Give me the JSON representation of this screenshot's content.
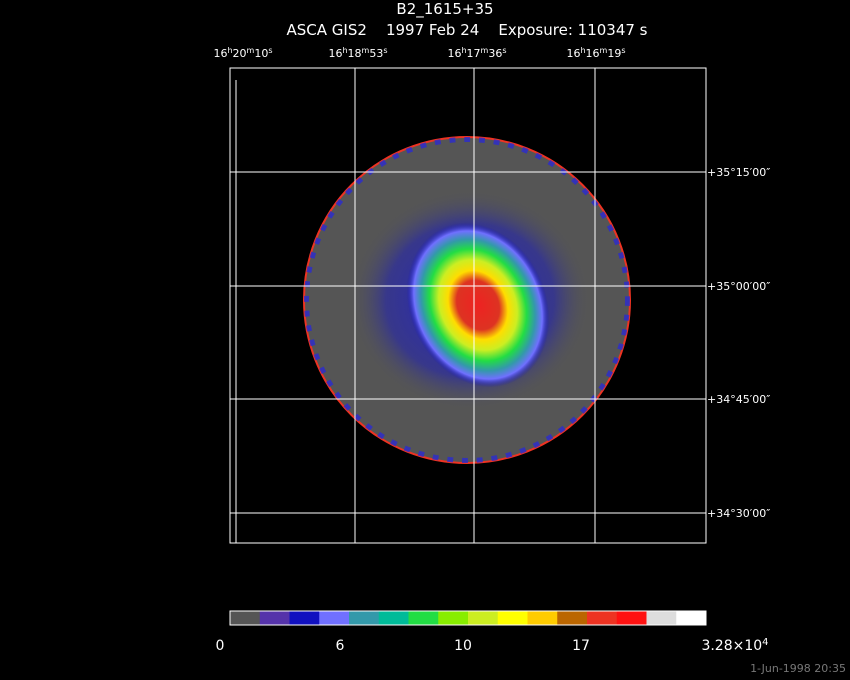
{
  "header": {
    "title": "B2_1615+35",
    "subtitle": "ASCA GIS2    1997 Feb 24    Exposure: 110347 s"
  },
  "ra_labels": [
    "16h20m10s",
    "16h18m53s",
    "16h17m36s",
    "16h16m19s"
  ],
  "dec_labels": [
    "+35°15′00″",
    "+35°00′00″",
    "+34°45′00″",
    "+34°30′00″"
  ],
  "colorbar": {
    "colors": [
      "#555555",
      "#5533aa",
      "#1010c0",
      "#7070ff",
      "#3399aa",
      "#00bb99",
      "#22dd44",
      "#88ee00",
      "#ccee22",
      "#ffff00",
      "#ffcc00",
      "#bb6600",
      "#ee3322",
      "#ff1111",
      "#dddddd",
      "#ffffff"
    ],
    "ticks": [
      "0",
      "6",
      "10",
      "17"
    ],
    "max_label": {
      "mantissa": "3.28×10",
      "exponent": "4"
    }
  },
  "footer": "1-Jun-1998 20:35"
}
